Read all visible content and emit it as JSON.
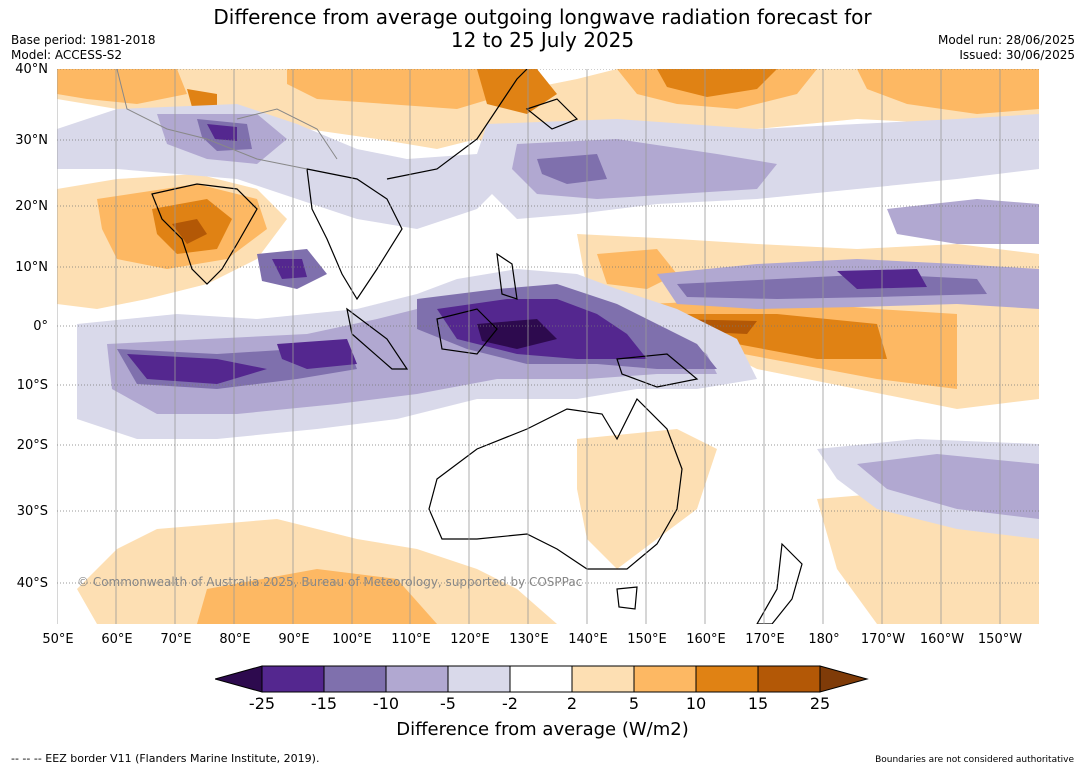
{
  "header": {
    "title_line1": "Difference from average outgoing longwave radiation forecast for",
    "title_line2": "12 to 25 July 2025",
    "base_period": "Base period: 1981-2018",
    "model": "Model: ACCESS-S2",
    "model_run": "Model run: 28/06/2025",
    "issued": "Issued: 30/06/2025"
  },
  "map": {
    "lat_labels": [
      "40°N",
      "30°N",
      "20°N",
      "10°N",
      "0°",
      "10°S",
      "20°S",
      "30°S",
      "40°S"
    ],
    "lon_labels": [
      "50°E",
      "60°E",
      "70°E",
      "80°E",
      "90°E",
      "100°E",
      "110°E",
      "120°E",
      "130°E",
      "140°E",
      "150°E",
      "160°E",
      "170°E",
      "180°",
      "170°W",
      "160°W",
      "150°W"
    ],
    "copyright": "© Commonwealth of Australia 2025, Bureau of Meteorology, supported by COSPPac"
  },
  "colorbar": {
    "ticks": [
      "-25",
      "-15",
      "-10",
      "-5",
      "-2",
      "2",
      "5",
      "10",
      "15",
      "25"
    ],
    "colors": [
      "#2d0a4e",
      "#54278f",
      "#7f70ad",
      "#b1a8d1",
      "#d9d9ea",
      "#ffffff",
      "#fddfb3",
      "#fdb863",
      "#e08214",
      "#b35806",
      "#7f3b08"
    ],
    "title": "Difference from average (W/m2)"
  },
  "footer": {
    "eez": "--  --  -- EEZ border V11 (Flanders Marine Institute, 2019).",
    "disclaimer": "Boundaries are not considered authoritative"
  }
}
